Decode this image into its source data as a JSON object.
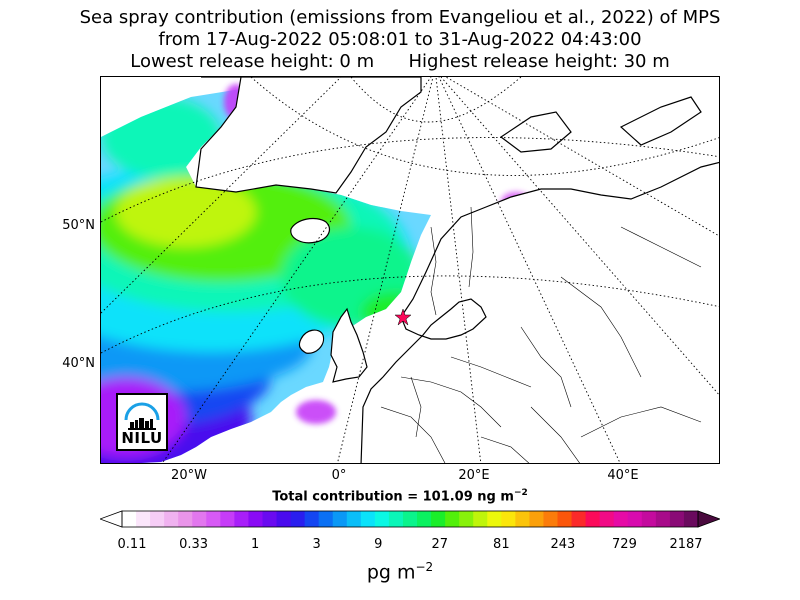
{
  "title": {
    "line1": "Sea spray contribution (emissions from Evangeliou et al., 2022) of MPS",
    "line2": "from 17-Aug-2022 05:08:01 to 31-Aug-2022 04:43:00",
    "line3_left": "Lowest release height: 0 m",
    "line3_right": "Highest release height: 30 m"
  },
  "map": {
    "lat_labels": [
      "50°N",
      "40°N"
    ],
    "lon_labels": [
      "20°W",
      "0°",
      "20°E",
      "40°E"
    ],
    "logo_text": "NILU"
  },
  "total": {
    "prefix": "Total contribution = 101.09 ng m",
    "exponent": "−2"
  },
  "colorbar": {
    "tick_labels": [
      "0.11",
      "0.33",
      "1",
      "3",
      "9",
      "27",
      "81",
      "243",
      "729",
      "2187"
    ],
    "colors": [
      "#ffffff",
      "#fbe6fb",
      "#f6cdf6",
      "#f0b2f0",
      "#ea95ea",
      "#e277ee",
      "#d75af5",
      "#c63cf8",
      "#a81ff9",
      "#8a0af5",
      "#6a0af0",
      "#4a0aee",
      "#2a1eef",
      "#1446f2",
      "#0a70f4",
      "#0a98f6",
      "#0abef8",
      "#0ae2fa",
      "#0af8e4",
      "#0af6b8",
      "#0af48c",
      "#0af260",
      "#1aee2a",
      "#52ef0a",
      "#88f20a",
      "#bff50a",
      "#ecf80a",
      "#fbe60a",
      "#fbc40a",
      "#fba00a",
      "#fb7c0a",
      "#fb560a",
      "#fb2a2a",
      "#fb0a5a",
      "#f20a86",
      "#e60aa6",
      "#d80aae",
      "#c40a9e",
      "#a80a8a",
      "#8a0a76",
      "#6a0a5e"
    ],
    "units": "pg m",
    "units_exponent": "−2"
  }
}
